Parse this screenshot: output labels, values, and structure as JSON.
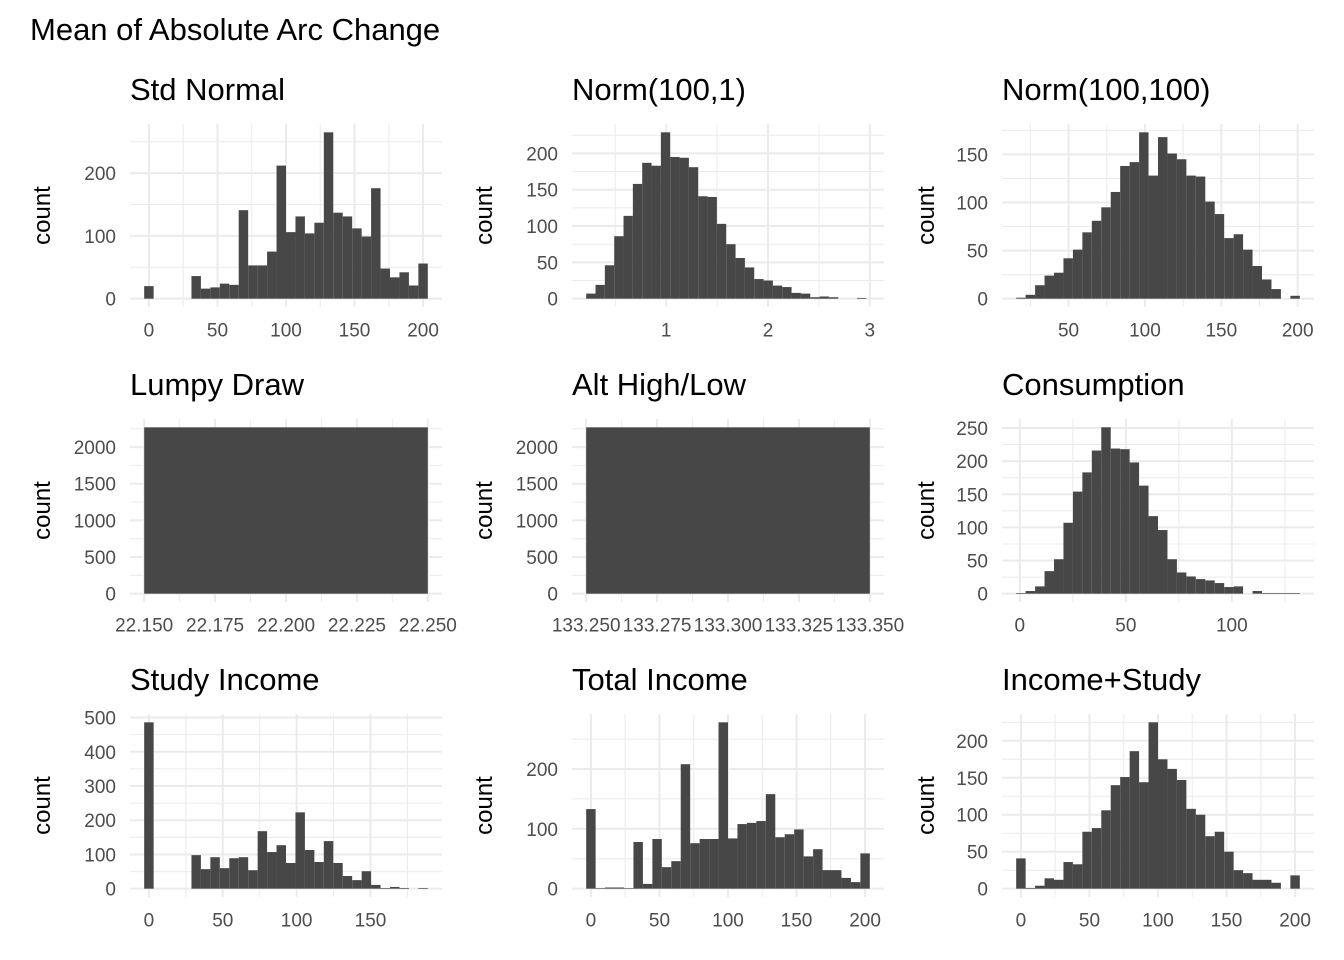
{
  "title": "Mean of Absolute Arc Change",
  "chart_data": [
    {
      "type": "bar",
      "title": "Std Normal",
      "xlabel": "",
      "ylabel": "count",
      "bin_start": 0,
      "binwidth": 6.897,
      "counts": [
        20,
        0,
        0,
        0,
        0,
        36,
        16,
        18,
        24,
        22,
        141,
        53,
        53,
        75,
        212,
        106,
        131,
        104,
        121,
        265,
        137,
        131,
        112,
        99,
        176,
        48,
        34,
        42,
        21,
        56
      ],
      "xticks": [
        "0",
        "50",
        "100",
        "150",
        "200"
      ],
      "xtick_values": [
        0,
        50,
        100,
        150,
        200
      ],
      "yticks": [
        "0",
        "100",
        "200"
      ],
      "ytick_values": [
        0,
        100,
        200
      ]
    },
    {
      "type": "bar",
      "title": "Norm(100,1)",
      "xlabel": "",
      "ylabel": "count",
      "bin_start": 0.26,
      "binwidth": 0.0917,
      "counts": [
        7,
        19,
        46,
        86,
        114,
        158,
        187,
        183,
        229,
        195,
        194,
        181,
        141,
        140,
        103,
        75,
        56,
        43,
        27,
        25,
        18,
        16,
        8,
        7,
        2,
        3,
        2,
        0,
        0,
        1
      ],
      "xticks": [
        "1",
        "2",
        "3"
      ],
      "xtick_values": [
        1,
        2,
        3
      ],
      "yticks": [
        "0",
        "50",
        "100",
        "150",
        "200"
      ],
      "ytick_values": [
        0,
        50,
        100,
        150,
        200
      ]
    },
    {
      "type": "bar",
      "title": "Norm(100,100)",
      "xlabel": "",
      "ylabel": "count",
      "bin_start": 18.8,
      "binwidth": 6.19,
      "counts": [
        1,
        4,
        14,
        24,
        27,
        42,
        51,
        69,
        81,
        95,
        111,
        138,
        142,
        173,
        128,
        168,
        151,
        145,
        128,
        127,
        101,
        88,
        63,
        67,
        51,
        34,
        20,
        10,
        0,
        3
      ],
      "xticks": [
        "50",
        "100",
        "150",
        "200"
      ],
      "xtick_values": [
        50,
        100,
        150,
        200
      ],
      "yticks": [
        "0",
        "50",
        "100",
        "150"
      ],
      "ytick_values": [
        0,
        50,
        100,
        150
      ]
    },
    {
      "type": "bar",
      "title": "Lumpy Draw",
      "xlabel": "",
      "ylabel": "count",
      "bin_start": 22.2,
      "binwidth": 0.1,
      "counts": [
        2270
      ],
      "xticks": [
        "22.150",
        "22.175",
        "22.200",
        "22.225",
        "22.250"
      ],
      "xtick_values": [
        22.15,
        22.175,
        22.2,
        22.225,
        22.25
      ],
      "yticks": [
        "0",
        "500",
        "1000",
        "1500",
        "2000"
      ],
      "ytick_values": [
        0,
        500,
        1000,
        1500,
        2000
      ]
    },
    {
      "type": "bar",
      "title": "Alt High/Low",
      "xlabel": "",
      "ylabel": "count",
      "bin_start": 133.3,
      "binwidth": 0.1,
      "counts": [
        2270
      ],
      "xticks": [
        "133.250",
        "133.275",
        "133.300",
        "133.325",
        "133.350"
      ],
      "xtick_values": [
        133.25,
        133.275,
        133.3,
        133.325,
        133.35
      ],
      "yticks": [
        "0",
        "500",
        "1000",
        "1500",
        "2000"
      ],
      "ytick_values": [
        0,
        500,
        1000,
        1500,
        2000
      ]
    },
    {
      "type": "bar",
      "title": "Consumption",
      "xlabel": "",
      "ylabel": "count",
      "bin_start": 0.5,
      "binwidth": 4.46,
      "counts": [
        1,
        4,
        11,
        34,
        52,
        107,
        154,
        183,
        216,
        251,
        219,
        218,
        198,
        163,
        117,
        96,
        52,
        32,
        26,
        22,
        20,
        16,
        10,
        11,
        0,
        4,
        1,
        1,
        1,
        1
      ],
      "xticks": [
        "0",
        "50",
        "100"
      ],
      "xtick_values": [
        0,
        50,
        100
      ],
      "yticks": [
        "0",
        "50",
        "100",
        "150",
        "200",
        "250"
      ],
      "ytick_values": [
        0,
        50,
        100,
        150,
        200,
        250
      ]
    },
    {
      "type": "bar",
      "title": "Study Income",
      "xlabel": "",
      "ylabel": "count",
      "bin_start": 0,
      "binwidth": 6.4,
      "counts": [
        486,
        0,
        0,
        0,
        0,
        98,
        57,
        92,
        60,
        89,
        92,
        54,
        168,
        107,
        127,
        75,
        223,
        113,
        78,
        139,
        75,
        37,
        25,
        51,
        11,
        2,
        5,
        2,
        0,
        2
      ],
      "xticks": [
        "0",
        "50",
        "100",
        "150"
      ],
      "xtick_values": [
        0,
        50,
        100,
        150
      ],
      "yticks": [
        "0",
        "100",
        "200",
        "300",
        "400",
        "500"
      ],
      "ytick_values": [
        0,
        100,
        200,
        300,
        400,
        500
      ]
    },
    {
      "type": "bar",
      "title": "Total Income",
      "xlabel": "",
      "ylabel": "count",
      "bin_start": 0,
      "binwidth": 6.897,
      "counts": [
        133,
        1,
        2,
        2,
        1,
        78,
        8,
        83,
        36,
        46,
        208,
        76,
        83,
        83,
        278,
        84,
        108,
        110,
        113,
        158,
        86,
        91,
        99,
        54,
        66,
        31,
        31,
        18,
        11,
        59
      ],
      "xticks": [
        "0",
        "50",
        "100",
        "150",
        "200"
      ],
      "xtick_values": [
        0,
        50,
        100,
        150,
        200
      ],
      "yticks": [
        "0",
        "100",
        "200"
      ],
      "ytick_values": [
        0,
        100,
        200
      ]
    },
    {
      "type": "bar",
      "title": "Income+Study",
      "xlabel": "",
      "ylabel": "count",
      "bin_start": 0,
      "binwidth": 6.897,
      "counts": [
        41,
        1,
        4,
        14,
        12,
        36,
        33,
        77,
        82,
        106,
        140,
        151,
        186,
        144,
        225,
        175,
        162,
        147,
        108,
        100,
        71,
        77,
        50,
        25,
        21,
        12,
        12,
        8,
        0,
        18
      ],
      "xticks": [
        "0",
        "50",
        "100",
        "150",
        "200"
      ],
      "xtick_values": [
        0,
        50,
        100,
        150,
        200
      ],
      "yticks": [
        "0",
        "50",
        "100",
        "150",
        "200"
      ],
      "ytick_values": [
        0,
        50,
        100,
        150,
        200
      ]
    }
  ]
}
